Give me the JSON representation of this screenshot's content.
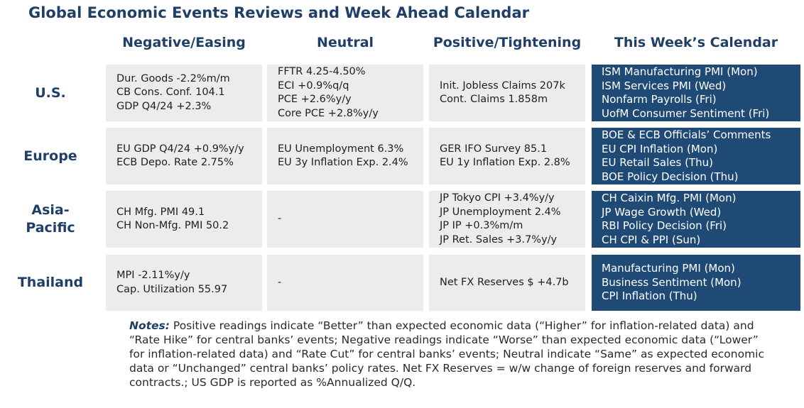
{
  "title": "Global Economic Events Reviews and Week Ahead Calendar",
  "columns": [
    "Negative/Easing",
    "Neutral",
    "Positive/Tightening",
    "This Week’s Calendar"
  ],
  "regions": [
    "U.S.",
    "Europe",
    "Asia-\nPacific",
    "Thailand"
  ],
  "rows": [
    {
      "negative": [
        "Dur. Goods -2.2%m/m",
        "CB Cons. Conf. 104.1",
        "GDP Q4/24 +2.3%"
      ],
      "neutral": [
        "FFTR 4.25-4.50%",
        "ECI +0.9%q/q",
        "PCE +2.6%y/y",
        "Core PCE +2.8%y/y"
      ],
      "positive": [
        "Init. Jobless Claims 207k",
        "Cont. Claims 1.858m"
      ],
      "calendar": [
        "ISM Manufacturing PMI (Mon)",
        "ISM Services PMI (Wed)",
        "Nonfarm Payrolls (Fri)",
        "UofM Consumer Sentiment (Fri)"
      ]
    },
    {
      "negative": [
        "EU GDP Q4/24 +0.9%y/y",
        "ECB Depo. Rate 2.75%"
      ],
      "neutral": [
        "EU Unemployment 6.3%",
        "EU 3y Inflation Exp. 2.4%"
      ],
      "positive": [
        "GER IFO Survey 85.1",
        "EU 1y Inflation Exp. 2.8%"
      ],
      "calendar": [
        "BOE & ECB Officials’ Comments",
        "EU CPI Inflation (Mon)",
        "EU Retail Sales (Thu)",
        "BOE Policy Decision (Thu)"
      ]
    },
    {
      "negative": [
        "CH Mfg. PMI 49.1",
        "CH Non-Mfg. PMI 50.2"
      ],
      "neutral": [
        "-"
      ],
      "positive": [
        "JP Tokyo CPI +3.4%y/y",
        "JP Unemployment 2.4%",
        "JP IP +0.3%m/m",
        "JP Ret. Sales +3.7%y/y"
      ],
      "calendar": [
        "CH Caixin Mfg. PMI (Mon)",
        "JP Wage Growth (Wed)",
        "RBI Policy Decision (Fri)",
        "CH CPI & PPI (Sun)"
      ]
    },
    {
      "negative": [
        "MPI -2.11%y/y",
        "Cap. Utilization 55.97"
      ],
      "neutral": [
        "-"
      ],
      "positive": [
        "Net FX Reserves $ +4.7b"
      ],
      "calendar": [
        "Manufacturing PMI (Mon)",
        "Business Sentiment (Mon)",
        "CPI Inflation (Thu)"
      ]
    }
  ],
  "notes": {
    "label": "Notes:",
    "text": " Positive readings indicate “Better” than expected economic data (“Higher” for inflation-related data) and “Rate Hike” for central banks’ events; Negative readings indicate “Worse” than expected economic data (“Lower” for inflation-related data) and “Rate Cut” for central banks’ events; Neutral indicate “Same” as expected economic data or “Unchanged” central banks’ policy rates. Net FX Reserves = w/w change of foreign reserves and forward contracts.; US GDP is reported as %Annualized Q/Q."
  }
}
